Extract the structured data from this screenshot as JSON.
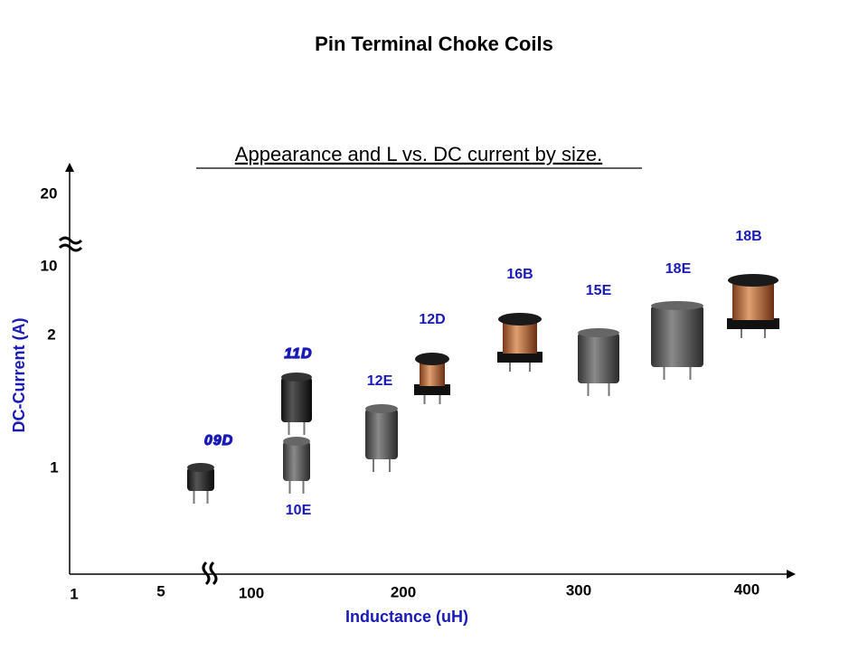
{
  "header": {
    "title": "Pin Terminal Choke Coils",
    "subtitle": "Appearance and L vs. DC current by size."
  },
  "y_axis": {
    "label": "DC-Current (A)",
    "ticks": [
      "20",
      "10",
      "2",
      "1"
    ]
  },
  "x_axis": {
    "label": "Inductance (uH)",
    "ticks": [
      "1",
      "5",
      "100",
      "200",
      "300",
      "400"
    ]
  },
  "components": [
    {
      "label": "09D"
    },
    {
      "label": "10E"
    },
    {
      "label": "11D"
    },
    {
      "label": "12E"
    },
    {
      "label": "12D"
    },
    {
      "label": "16B"
    },
    {
      "label": "15E"
    },
    {
      "label": "18E"
    },
    {
      "label": "18B"
    }
  ]
}
